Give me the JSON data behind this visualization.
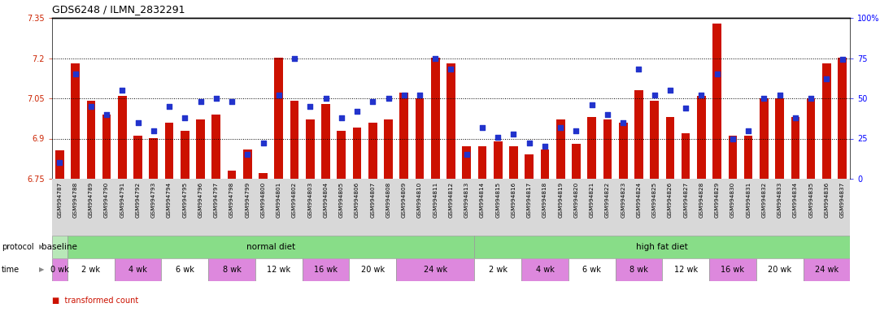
{
  "title": "GDS6248 / ILMN_2832291",
  "samples": [
    "GSM994787",
    "GSM994788",
    "GSM994789",
    "GSM994790",
    "GSM994791",
    "GSM994792",
    "GSM994793",
    "GSM994794",
    "GSM994795",
    "GSM994796",
    "GSM994797",
    "GSM994798",
    "GSM994799",
    "GSM994800",
    "GSM994801",
    "GSM994802",
    "GSM994803",
    "GSM994804",
    "GSM994805",
    "GSM994806",
    "GSM994807",
    "GSM994808",
    "GSM994809",
    "GSM994810",
    "GSM994811",
    "GSM994812",
    "GSM994813",
    "GSM994814",
    "GSM994815",
    "GSM994816",
    "GSM994817",
    "GSM994818",
    "GSM994819",
    "GSM994820",
    "GSM994821",
    "GSM994822",
    "GSM994823",
    "GSM994824",
    "GSM994825",
    "GSM994826",
    "GSM994827",
    "GSM994828",
    "GSM994829",
    "GSM994830",
    "GSM994831",
    "GSM994832",
    "GSM994833",
    "GSM994834",
    "GSM994835",
    "GSM994836",
    "GSM994837"
  ],
  "bar_values": [
    6.855,
    7.18,
    7.04,
    6.99,
    7.06,
    6.91,
    6.9,
    6.96,
    6.93,
    6.97,
    6.99,
    6.78,
    6.86,
    6.77,
    7.2,
    7.04,
    6.97,
    7.03,
    6.93,
    6.94,
    6.96,
    6.97,
    7.07,
    7.05,
    7.2,
    7.18,
    6.87,
    6.87,
    6.89,
    6.87,
    6.84,
    6.86,
    6.97,
    6.88,
    6.98,
    6.97,
    6.96,
    7.08,
    7.04,
    6.98,
    6.92,
    7.06,
    7.33,
    6.91,
    6.91,
    7.05,
    7.05,
    6.98,
    7.05,
    7.18,
    7.2
  ],
  "percentile_values": [
    10,
    65,
    45,
    40,
    55,
    35,
    30,
    45,
    38,
    48,
    50,
    48,
    15,
    22,
    52,
    75,
    45,
    50,
    38,
    42,
    48,
    50,
    52,
    52,
    75,
    68,
    15,
    32,
    26,
    28,
    22,
    20,
    32,
    30,
    46,
    40,
    35,
    68,
    52,
    55,
    44,
    52,
    65,
    25,
    30,
    50,
    52,
    38,
    50,
    62,
    74
  ],
  "ylim_left": [
    6.75,
    7.35
  ],
  "ylim_right": [
    0,
    100
  ],
  "yticks_left": [
    6.75,
    6.9,
    7.05,
    7.2,
    7.35
  ],
  "yticks_right": [
    0,
    25,
    50,
    75,
    100
  ],
  "ytick_labels_left": [
    "6.75",
    "6.9",
    "7.05",
    "7.2",
    "7.35"
  ],
  "ytick_labels_right": [
    "0",
    "25",
    "50",
    "75",
    "100%"
  ],
  "hlines": [
    6.9,
    7.05,
    7.2
  ],
  "bar_color": "#cc1100",
  "dot_color": "#2233cc",
  "bg_color": "#ffffff",
  "xtick_bg": "#d8d8d8",
  "protocol_groups": [
    {
      "label": "baseline",
      "start": 0,
      "end": 1,
      "color": "#b8e8b8"
    },
    {
      "label": "normal diet",
      "start": 1,
      "end": 27,
      "color": "#88dd88"
    },
    {
      "label": "high fat diet",
      "start": 27,
      "end": 51,
      "color": "#88dd88"
    }
  ],
  "time_groups": [
    {
      "label": "0 wk",
      "start": 0,
      "end": 1,
      "pink": true
    },
    {
      "label": "2 wk",
      "start": 1,
      "end": 4,
      "pink": false
    },
    {
      "label": "4 wk",
      "start": 4,
      "end": 7,
      "pink": true
    },
    {
      "label": "6 wk",
      "start": 7,
      "end": 10,
      "pink": false
    },
    {
      "label": "8 wk",
      "start": 10,
      "end": 13,
      "pink": true
    },
    {
      "label": "12 wk",
      "start": 13,
      "end": 16,
      "pink": false
    },
    {
      "label": "16 wk",
      "start": 16,
      "end": 19,
      "pink": true
    },
    {
      "label": "20 wk",
      "start": 19,
      "end": 22,
      "pink": false
    },
    {
      "label": "24 wk",
      "start": 22,
      "end": 27,
      "pink": true
    },
    {
      "label": "2 wk",
      "start": 27,
      "end": 30,
      "pink": false
    },
    {
      "label": "4 wk",
      "start": 30,
      "end": 33,
      "pink": true
    },
    {
      "label": "6 wk",
      "start": 33,
      "end": 36,
      "pink": false
    },
    {
      "label": "8 wk",
      "start": 36,
      "end": 39,
      "pink": true
    },
    {
      "label": "12 wk",
      "start": 39,
      "end": 42,
      "pink": false
    },
    {
      "label": "16 wk",
      "start": 42,
      "end": 45,
      "pink": true
    },
    {
      "label": "20 wk",
      "start": 45,
      "end": 48,
      "pink": false
    },
    {
      "label": "24 wk",
      "start": 48,
      "end": 51,
      "pink": true
    }
  ],
  "pink_color": "#dd88dd",
  "white_color": "#ffffff",
  "n_samples": 51
}
